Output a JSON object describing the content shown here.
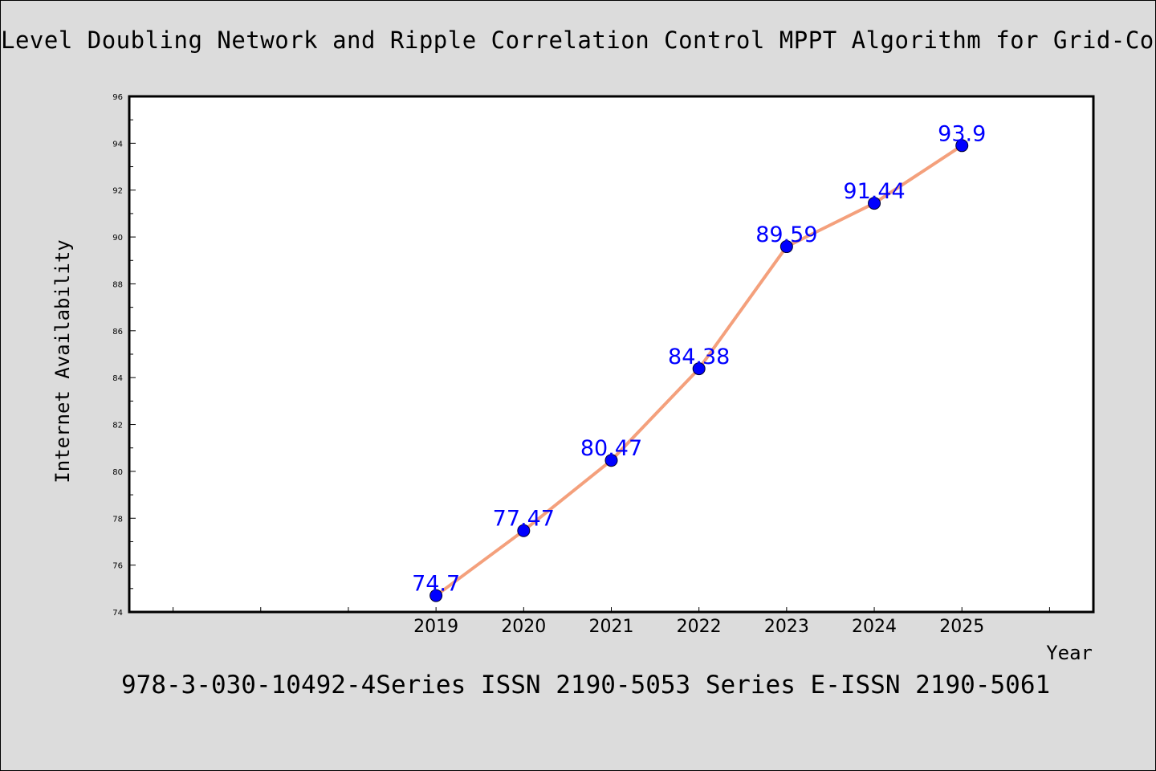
{
  "page": {
    "title": "Level Doubling Network and Ripple Correlation Control MPPT Algorithm for Grid-Co",
    "footer": "978-3-030-10492-4Series ISSN 2190-5053 Series E-ISSN 2190-5061"
  },
  "chart_data": {
    "type": "line",
    "title": "",
    "xlabel": "Year",
    "ylabel": "Internet Availability",
    "x": [
      "2019",
      "2020",
      "2021",
      "2022",
      "2023",
      "2024",
      "2025"
    ],
    "series": [
      {
        "values": [
          74.7,
          77.47,
          80.47,
          84.38,
          89.59,
          91.44,
          93.9
        ]
      }
    ],
    "data_labels": [
      "74.7",
      "77.47",
      "80.47",
      "84.38",
      "89.59",
      "91.44",
      "93.9"
    ],
    "xlim": [
      2015.5,
      2026.5
    ],
    "ylim": [
      74,
      96
    ],
    "yticks": [
      "74",
      "76",
      "78",
      "80",
      "82",
      "84",
      "86",
      "88",
      "90",
      "92",
      "94",
      "96"
    ],
    "grid": false,
    "legend": "none",
    "colors": {
      "line": "#f4a07c",
      "marker": "#0000ff",
      "label": "#0000ff",
      "background": "#dcdcdc",
      "plot_background": "#ffffff"
    }
  }
}
